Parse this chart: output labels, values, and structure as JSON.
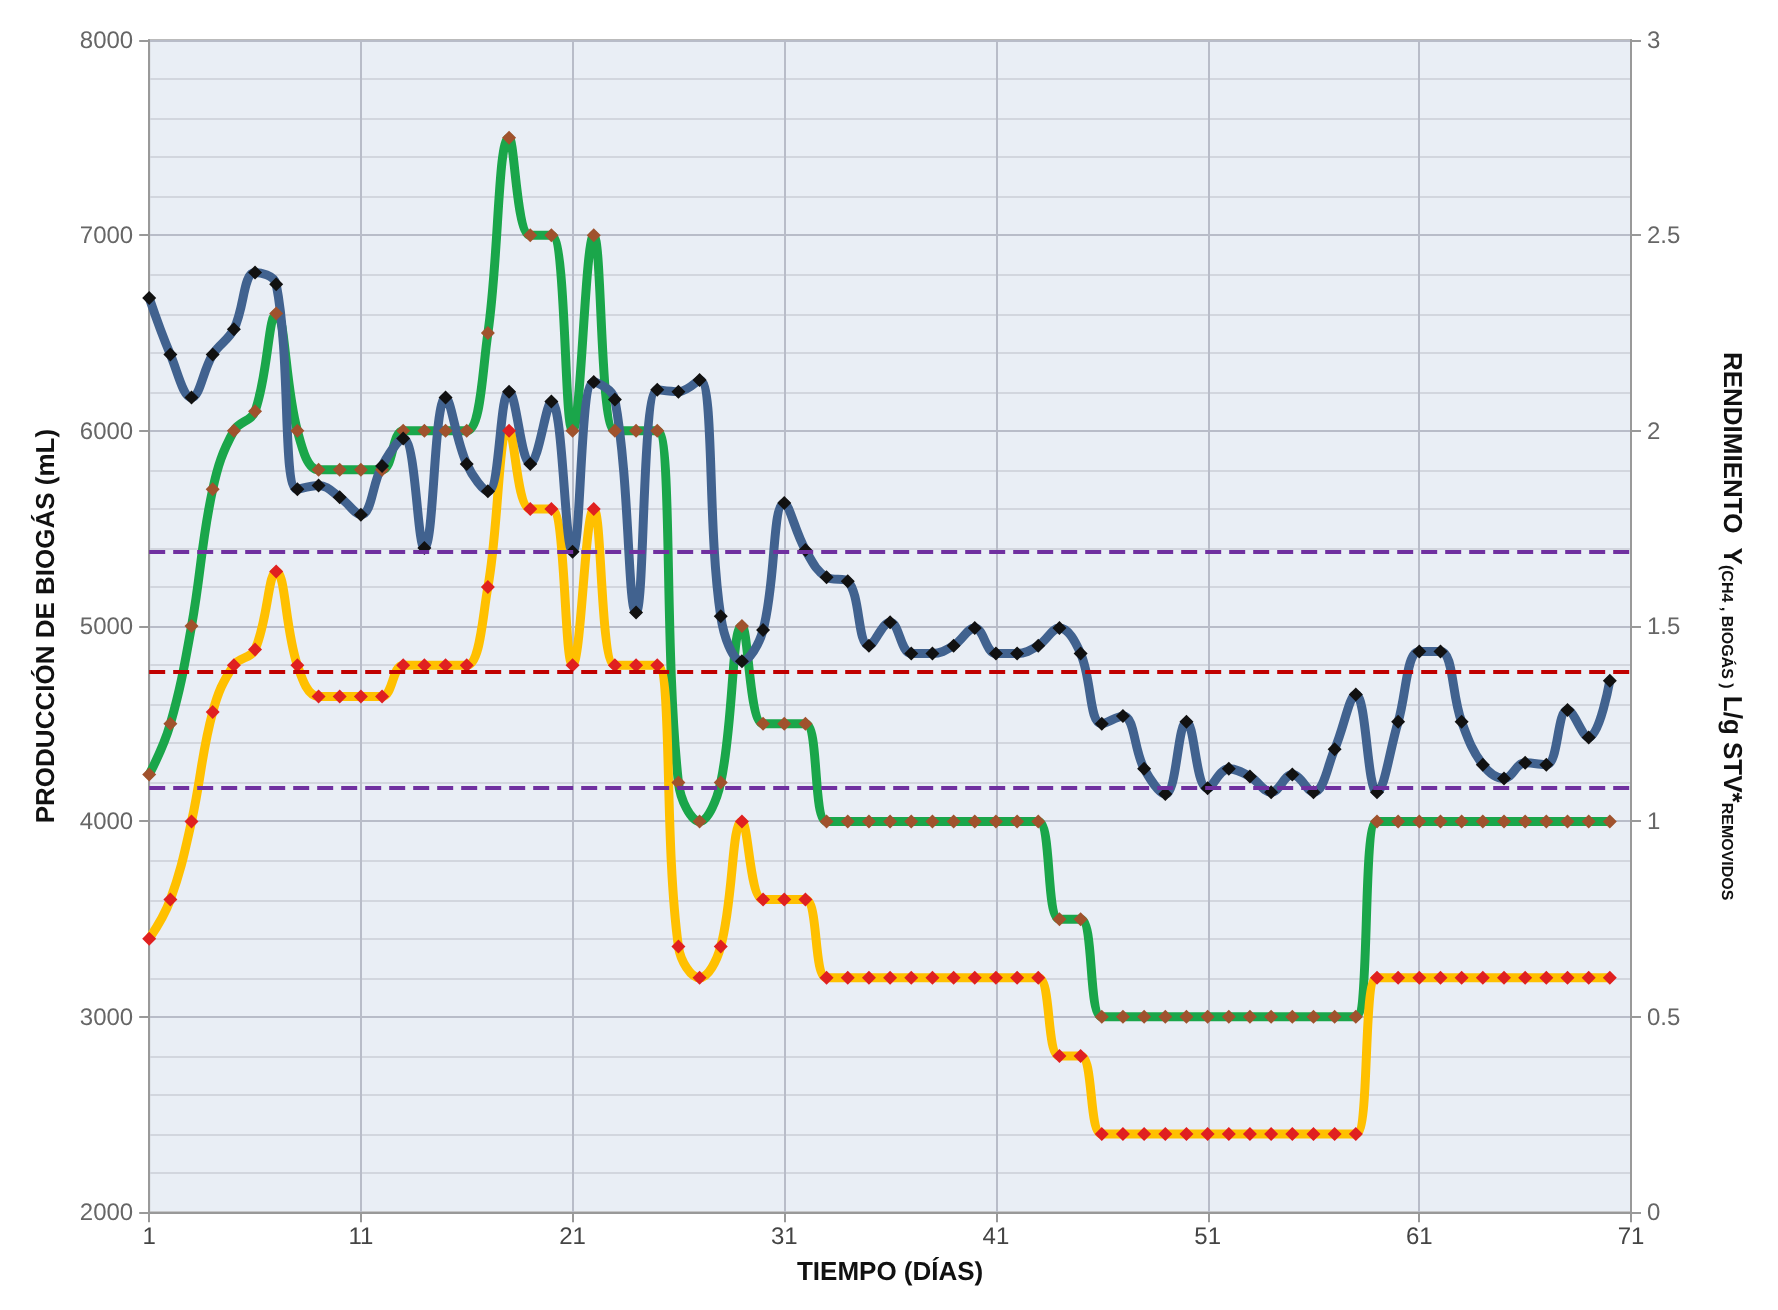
{
  "chart_data": {
    "type": "line",
    "xlabel": "TIEMPO (DÍAS)",
    "ylabel": "PRODUCCIÓN DE BIOGÁS (mL)",
    "y2label": "RENDIMIENTO  Y$_{(CH4 , BIOGÁS )}$ L/g STV*$_{REMOVIDOS}$",
    "x": [
      1,
      2,
      3,
      4,
      5,
      6,
      7,
      8,
      9,
      10,
      11,
      12,
      13,
      14,
      15,
      16,
      17,
      18,
      19,
      20,
      21,
      22,
      23,
      24,
      25,
      26,
      27,
      28,
      29,
      30,
      31,
      32,
      33,
      34,
      35,
      36,
      37,
      38,
      39,
      40,
      41,
      42,
      43,
      44,
      45,
      46,
      47,
      48,
      49,
      50,
      51,
      52,
      53,
      54,
      55,
      56,
      57,
      58,
      59,
      60,
      61,
      62,
      63,
      64,
      65,
      66,
      67,
      68,
      69,
      70
    ],
    "xlim": [
      1,
      71
    ],
    "xticks": [
      1,
      11,
      21,
      31,
      41,
      51,
      61,
      71
    ],
    "ylim": [
      2000,
      8000
    ],
    "yticks": [
      2000,
      3000,
      4000,
      5000,
      6000,
      7000,
      8000
    ],
    "y2lim": [
      0,
      3
    ],
    "y2ticks": [
      0,
      0.5,
      1,
      1.5,
      2,
      2.5,
      3
    ],
    "grid": true,
    "marker": "diamond",
    "line_style": "solid",
    "series": [
      {
        "color": "#1aa64a",
        "axis": "y2",
        "values": [
          1.12,
          1.25,
          1.5,
          1.85,
          2.0,
          2.05,
          2.3,
          2.0,
          1.9,
          1.9,
          1.9,
          1.9,
          2.0,
          2.0,
          2.0,
          2.0,
          2.25,
          2.75,
          2.5,
          2.5,
          2.0,
          2.5,
          2.0,
          2.0,
          2.0,
          1.1,
          1.0,
          1.1,
          1.5,
          1.25,
          1.25,
          1.25,
          1.0,
          1.0,
          1.0,
          1.0,
          1.0,
          1.0,
          1.0,
          1.0,
          1.0,
          1.0,
          1.0,
          0.75,
          0.75,
          0.5,
          0.5,
          0.5,
          0.5,
          0.5,
          0.5,
          0.5,
          0.5,
          0.5,
          0.5,
          0.5,
          0.5,
          0.5,
          1.0,
          1.0,
          1.0,
          1.0,
          1.0,
          1.0,
          1.0,
          1.0,
          1.0,
          1.0,
          1.0,
          1.0
        ]
      },
      {
        "color": "#ffc000",
        "axis": "y2",
        "values": [
          0.7,
          0.8,
          1.0,
          1.28,
          1.4,
          1.44,
          1.64,
          1.4,
          1.32,
          1.32,
          1.32,
          1.32,
          1.4,
          1.4,
          1.4,
          1.4,
          1.6,
          2.0,
          1.8,
          1.8,
          1.4,
          1.8,
          1.4,
          1.4,
          1.4,
          0.68,
          0.6,
          0.68,
          1.0,
          0.8,
          0.8,
          0.8,
          0.6,
          0.6,
          0.6,
          0.6,
          0.6,
          0.6,
          0.6,
          0.6,
          0.6,
          0.6,
          0.6,
          0.4,
          0.4,
          0.2,
          0.2,
          0.2,
          0.2,
          0.2,
          0.2,
          0.2,
          0.2,
          0.2,
          0.2,
          0.2,
          0.2,
          0.2,
          0.6,
          0.6,
          0.6,
          0.6,
          0.6,
          0.6,
          0.6,
          0.6,
          0.6,
          0.6,
          0.6,
          0.6
        ]
      },
      {
        "color": "#41628f",
        "values": [
          6680,
          6390,
          6170,
          6390,
          6520,
          6810,
          6750,
          5700,
          5720,
          5660,
          5570,
          5820,
          5960,
          5400,
          6170,
          5830,
          5690,
          6200,
          5830,
          6150,
          5380,
          6250,
          6160,
          5070,
          6210,
          6200,
          6260,
          5050,
          4820,
          4980,
          5630,
          5390,
          5250,
          5230,
          4900,
          5020,
          4860,
          4860,
          4900,
          4990,
          4860,
          4860,
          4900,
          4990,
          4860,
          4500,
          4540,
          4270,
          4140,
          4510,
          4170,
          4270,
          4230,
          4150,
          4240,
          4150,
          4370,
          4650,
          4150,
          4510,
          4870,
          4870,
          4510,
          4290,
          4220,
          4300,
          4290,
          4570,
          4430,
          4720
        ]
      }
    ],
    "ref_lines": [
      {
        "axis": "y",
        "value": 5380,
        "color": "#7030a0",
        "line_style": "dashed"
      },
      {
        "axis": "y",
        "value": 4770,
        "color": "#c00000",
        "line_style": "dashed"
      },
      {
        "axis": "y",
        "value": 4175,
        "color": "#7030a0",
        "line_style": "dashed"
      }
    ]
  }
}
